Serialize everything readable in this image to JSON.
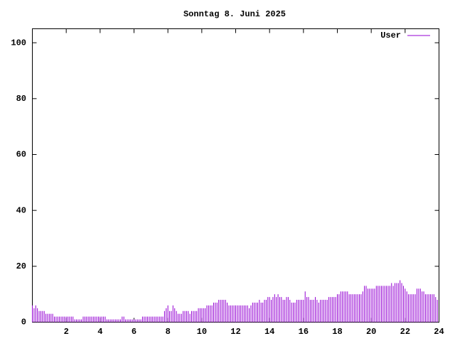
{
  "chart_data": {
    "type": "impulses",
    "title": "Sonntag 8. Juni 2025",
    "xlim": [
      0,
      24
    ],
    "xticks": [
      2,
      4,
      6,
      8,
      10,
      12,
      14,
      16,
      18,
      20,
      22,
      24
    ],
    "ylim": [
      0,
      105
    ],
    "yticks": [
      0,
      20,
      40,
      60,
      80,
      100
    ],
    "legend": "top-right",
    "x": [
      0,
      0.1,
      0.2,
      0.3,
      0.4,
      0.5,
      0.6,
      0.7,
      0.8,
      0.9,
      1,
      1.1,
      1.2,
      1.3,
      1.4,
      1.5,
      1.6,
      1.7,
      1.8,
      1.9,
      2,
      2.1,
      2.2,
      2.3,
      2.4,
      2.5,
      2.6,
      2.7,
      2.8,
      2.9,
      3,
      3.1,
      3.2,
      3.3,
      3.4,
      3.5,
      3.6,
      3.7,
      3.8,
      3.9,
      4,
      4.1,
      4.2,
      4.3,
      4.4,
      4.5,
      4.6,
      4.7,
      4.8,
      4.9,
      5,
      5.1,
      5.2,
      5.3,
      5.4,
      5.5,
      5.6,
      5.7,
      5.8,
      5.9,
      6,
      6.1,
      6.2,
      6.3,
      6.4,
      6.5,
      6.6,
      6.7,
      6.8,
      6.9,
      7,
      7.1,
      7.2,
      7.3,
      7.4,
      7.5,
      7.6,
      7.7,
      7.8,
      7.9,
      8,
      8.1,
      8.2,
      8.3,
      8.4,
      8.5,
      8.6,
      8.7,
      8.8,
      8.9,
      9,
      9.1,
      9.2,
      9.3,
      9.4,
      9.5,
      9.6,
      9.7,
      9.8,
      9.9,
      10,
      10.1,
      10.2,
      10.3,
      10.4,
      10.5,
      10.6,
      10.7,
      10.8,
      10.9,
      11,
      11.1,
      11.2,
      11.3,
      11.4,
      11.5,
      11.6,
      11.7,
      11.8,
      11.9,
      12,
      12.1,
      12.2,
      12.3,
      12.4,
      12.5,
      12.6,
      12.7,
      12.8,
      12.9,
      13,
      13.1,
      13.2,
      13.3,
      13.4,
      13.5,
      13.6,
      13.7,
      13.8,
      13.9,
      14,
      14.1,
      14.2,
      14.3,
      14.4,
      14.5,
      14.6,
      14.7,
      14.8,
      14.9,
      15,
      15.1,
      15.2,
      15.3,
      15.4,
      15.5,
      15.6,
      15.7,
      15.8,
      15.9,
      16,
      16.1,
      16.2,
      16.3,
      16.4,
      16.5,
      16.6,
      16.7,
      16.8,
      16.9,
      17,
      17.1,
      17.2,
      17.3,
      17.4,
      17.5,
      17.6,
      17.7,
      17.8,
      17.9,
      18,
      18.1,
      18.2,
      18.3,
      18.4,
      18.5,
      18.6,
      18.7,
      18.8,
      18.9,
      19,
      19.1,
      19.2,
      19.3,
      19.4,
      19.5,
      19.6,
      19.7,
      19.8,
      19.9,
      20,
      20.1,
      20.2,
      20.3,
      20.4,
      20.5,
      20.6,
      20.7,
      20.8,
      20.9,
      21,
      21.1,
      21.2,
      21.3,
      21.4,
      21.5,
      21.6,
      21.7,
      21.8,
      21.9,
      22,
      22.1,
      22.2,
      22.3,
      22.4,
      22.5,
      22.6,
      22.7,
      22.8,
      22.9,
      23,
      23.1,
      23.2,
      23.3,
      23.4,
      23.5,
      23.6,
      23.7,
      23.8,
      23.9
    ],
    "series": [
      {
        "name": "User",
        "color": "#9400d3",
        "values": [
          6,
          5,
          6,
          5,
          4,
          4,
          4,
          4,
          3,
          3,
          3,
          3,
          3,
          2,
          2,
          2,
          2,
          2,
          2,
          2,
          2,
          2,
          2,
          2,
          2,
          1,
          1,
          1,
          1,
          1,
          2,
          2,
          2,
          2,
          2,
          2,
          2,
          2,
          2,
          2,
          2,
          2,
          2,
          2,
          1,
          1,
          1,
          1,
          1,
          1,
          1,
          1,
          1,
          2,
          2,
          1,
          1,
          1,
          1,
          1,
          1,
          1,
          1,
          1,
          1,
          2,
          2,
          2,
          2,
          2,
          2,
          2,
          2,
          2,
          2,
          2,
          2,
          2,
          4,
          5,
          6,
          4,
          4,
          6,
          5,
          4,
          3,
          3,
          3,
          4,
          4,
          4,
          4,
          3,
          4,
          4,
          4,
          4,
          5,
          5,
          5,
          5,
          5,
          6,
          6,
          6,
          6,
          7,
          7,
          7,
          8,
          8,
          8,
          8,
          8,
          7,
          6,
          6,
          6,
          6,
          6,
          6,
          6,
          6,
          6,
          6,
          6,
          6,
          5,
          6,
          7,
          7,
          7,
          7,
          8,
          7,
          7,
          8,
          8,
          9,
          9,
          8,
          9,
          10,
          9,
          10,
          9,
          9,
          8,
          8,
          9,
          9,
          8,
          7,
          7,
          7,
          8,
          8,
          8,
          8,
          8,
          11,
          9,
          9,
          8,
          8,
          8,
          9,
          8,
          7,
          8,
          8,
          8,
          8,
          8,
          9,
          9,
          9,
          9,
          9,
          10,
          10,
          11,
          11,
          11,
          11,
          11,
          10,
          10,
          10,
          10,
          10,
          10,
          10,
          10,
          11,
          13,
          13,
          12,
          12,
          12,
          12,
          12,
          13,
          13,
          13,
          13,
          13,
          13,
          13,
          13,
          13,
          14,
          13,
          14,
          14,
          14,
          15,
          14,
          13,
          12,
          11,
          10,
          10,
          10,
          10,
          10,
          12,
          12,
          12,
          11,
          11,
          10,
          10,
          10,
          10,
          10,
          10,
          9,
          8
        ]
      }
    ]
  }
}
